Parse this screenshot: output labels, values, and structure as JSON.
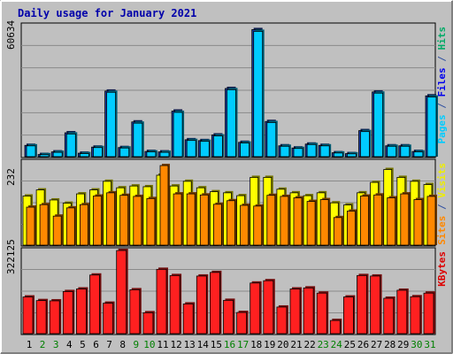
{
  "chart_data": {
    "type": "bar",
    "title": "Daily usage for January 2021",
    "days": [
      "1",
      "2",
      "3",
      "4",
      "5",
      "6",
      "7",
      "8",
      "9",
      "10",
      "11",
      "12",
      "13",
      "14",
      "15",
      "16",
      "17",
      "18",
      "19",
      "20",
      "21",
      "22",
      "23",
      "24",
      "25",
      "26",
      "27",
      "28",
      "29",
      "30",
      "31"
    ],
    "weekend_days": [
      2,
      3,
      9,
      10,
      16,
      17,
      23,
      24,
      30,
      31
    ],
    "panels": [
      {
        "id": "requests",
        "scale_label": "60634",
        "ymax": 60634,
        "legend": [
          {
            "text": "Pages",
            "color": "#00ccff"
          },
          {
            "text": " / ",
            "color": "#3050a0"
          },
          {
            "text": "Files",
            "color": "#0000ee"
          },
          {
            "text": " / ",
            "color": "#3050a0"
          },
          {
            "text": "Hits",
            "color": "#00aa66"
          }
        ],
        "series": [
          {
            "name": "Hits",
            "color": "#00aa66",
            "values": [
              0,
              0,
              0,
              0,
              0,
              0,
              0,
              0,
              0,
              0,
              0,
              0,
              0,
              0,
              0,
              0,
              0,
              0,
              0,
              0,
              0,
              0,
              0,
              0,
              0,
              0,
              0,
              0,
              0,
              0,
              0
            ]
          },
          {
            "name": "Files",
            "color": "#1b3ea8",
            "values": [
              5224,
              1005,
              2211,
              11055,
              1608,
              4421,
              30349,
              4220,
              16079,
              2412,
              2211,
              21103,
              7839,
              7437,
              10050,
              31554,
              6633,
              58825,
              16280,
              5025,
              4020,
              5828,
              5225,
              1808,
              1407,
              12059,
              29947,
              5025,
              5025,
              2412,
              28138
            ]
          },
          {
            "name": "Pages",
            "color": "#00ccff",
            "values": [
              5000,
              900,
              2000,
              10500,
              1400,
              4200,
              29800,
              4000,
              15500,
              2200,
              2000,
              20500,
              7500,
              7100,
              9600,
              31000,
              6300,
              58000,
              15800,
              4800,
              3800,
              5600,
              5000,
              1700,
              1300,
              11600,
              29400,
              4800,
              4800,
              2200,
              27600
            ]
          }
        ]
      },
      {
        "id": "visits",
        "scale_label": "232",
        "ymax": 232,
        "legend": [
          {
            "text": "Sites",
            "color": "#ff8800"
          },
          {
            "text": " / ",
            "color": "#3050a0"
          },
          {
            "text": "Visits",
            "color": "#eeee00"
          }
        ],
        "series": [
          {
            "name": "Visits",
            "color": "#ffff00",
            "values": [
              137,
              154,
              126,
              117,
              143,
              154,
              178,
              160,
              165,
              163,
              195,
              165,
              178,
              160,
              149,
              146,
              138,
              189,
              189,
              156,
              146,
              138,
              146,
              118,
              112,
              146,
              175,
              211,
              189,
              178,
              169
            ]
          },
          {
            "name": "Sites",
            "color": "#ff8800",
            "values": [
              106,
              113,
              81,
              104,
              113,
              137,
              146,
              139,
              136,
              130,
              222,
              143,
              143,
              140,
              114,
              124,
              111,
              109,
              139,
              136,
              132,
              122,
              127,
              77,
              95,
              137,
              140,
              132,
              143,
              127,
              136
            ]
          }
        ]
      },
      {
        "id": "kbytes",
        "scale_label": "322125",
        "ymax": 322125,
        "legend": [
          {
            "text": "KBytes",
            "color": "#dd0000"
          }
        ],
        "series": [
          {
            "name": "KBytes",
            "color": "#ff2020",
            "values": [
              142000,
              128000,
              127000,
              163000,
              173000,
              227000,
              118000,
              322000,
              170000,
              81000,
              249000,
              225000,
              115000,
              223000,
              237000,
              129000,
              82000,
              196000,
              205000,
              103000,
              173000,
              177000,
              157000,
              51000,
              142000,
              225000,
              223000,
              137000,
              168000,
              143000,
              157000
            ]
          }
        ]
      }
    ]
  }
}
